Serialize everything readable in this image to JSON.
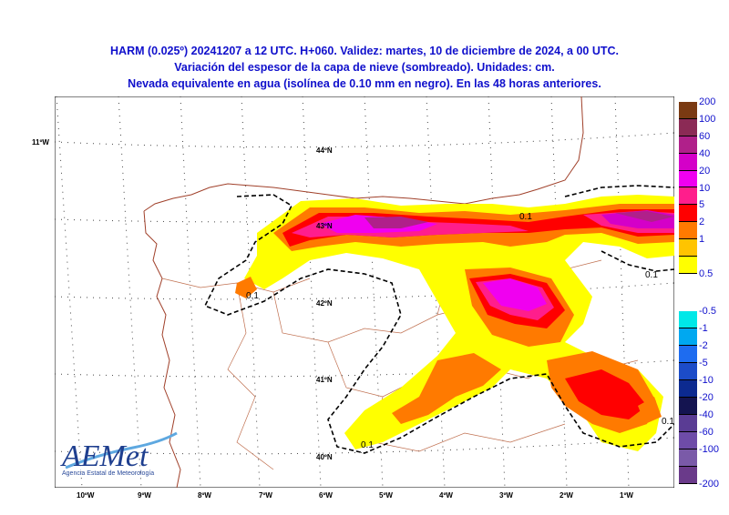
{
  "header": {
    "line1": "HARM (0.025º) 20241207 a 12 UTC. H+060. Validez: martes, 10 de diciembre de 2024, a 00 UTC.",
    "line2": "Variación del espesor de la capa de nieve (sombreado). Unidades: cm.",
    "line3": "Nevada equivalente en agua (isolínea de 0.10 mm en negro). En las 48 horas anteriores."
  },
  "map": {
    "lon_labels": [
      "10ºW",
      "9ºW",
      "8ºW",
      "7ºW",
      "6ºW",
      "5ºW",
      "4ºW",
      "3ºW",
      "2ºW",
      "1ºW"
    ],
    "lat_labels": [
      "44ºN",
      "43ºN",
      "42ºN",
      "41ºN",
      "40ºN"
    ],
    "edge_label": "11ºW",
    "contour_labels": [
      "0.1",
      "0.1",
      "0.1",
      "0.1",
      "0.1"
    ]
  },
  "colorbar_positive": {
    "labels": [
      "200",
      "100",
      "60",
      "40",
      "20",
      "10",
      "5",
      "2",
      "1",
      "0.5"
    ],
    "colors": [
      "#7a3a12",
      "#8b2a55",
      "#b0208a",
      "#d400c8",
      "#f000f0",
      "#ff1e8c",
      "#ff0000",
      "#ff7a00",
      "#ffc400",
      "#ffff00"
    ]
  },
  "colorbar_negative": {
    "labels": [
      "-0.5",
      "-1",
      "-2",
      "-5",
      "-10",
      "-20",
      "-40",
      "-60",
      "-100",
      "-200"
    ],
    "colors": [
      "#00e8e8",
      "#00a8f0",
      "#1e6cf0",
      "#1c4cc8",
      "#0c2a90",
      "#141450",
      "#5a3c94",
      "#6e4ca8",
      "#7a5aa8",
      "#6a3a8a"
    ]
  },
  "logo": {
    "text": "AEMet",
    "subtitle": "Agencia Estatal de Meteorología"
  }
}
